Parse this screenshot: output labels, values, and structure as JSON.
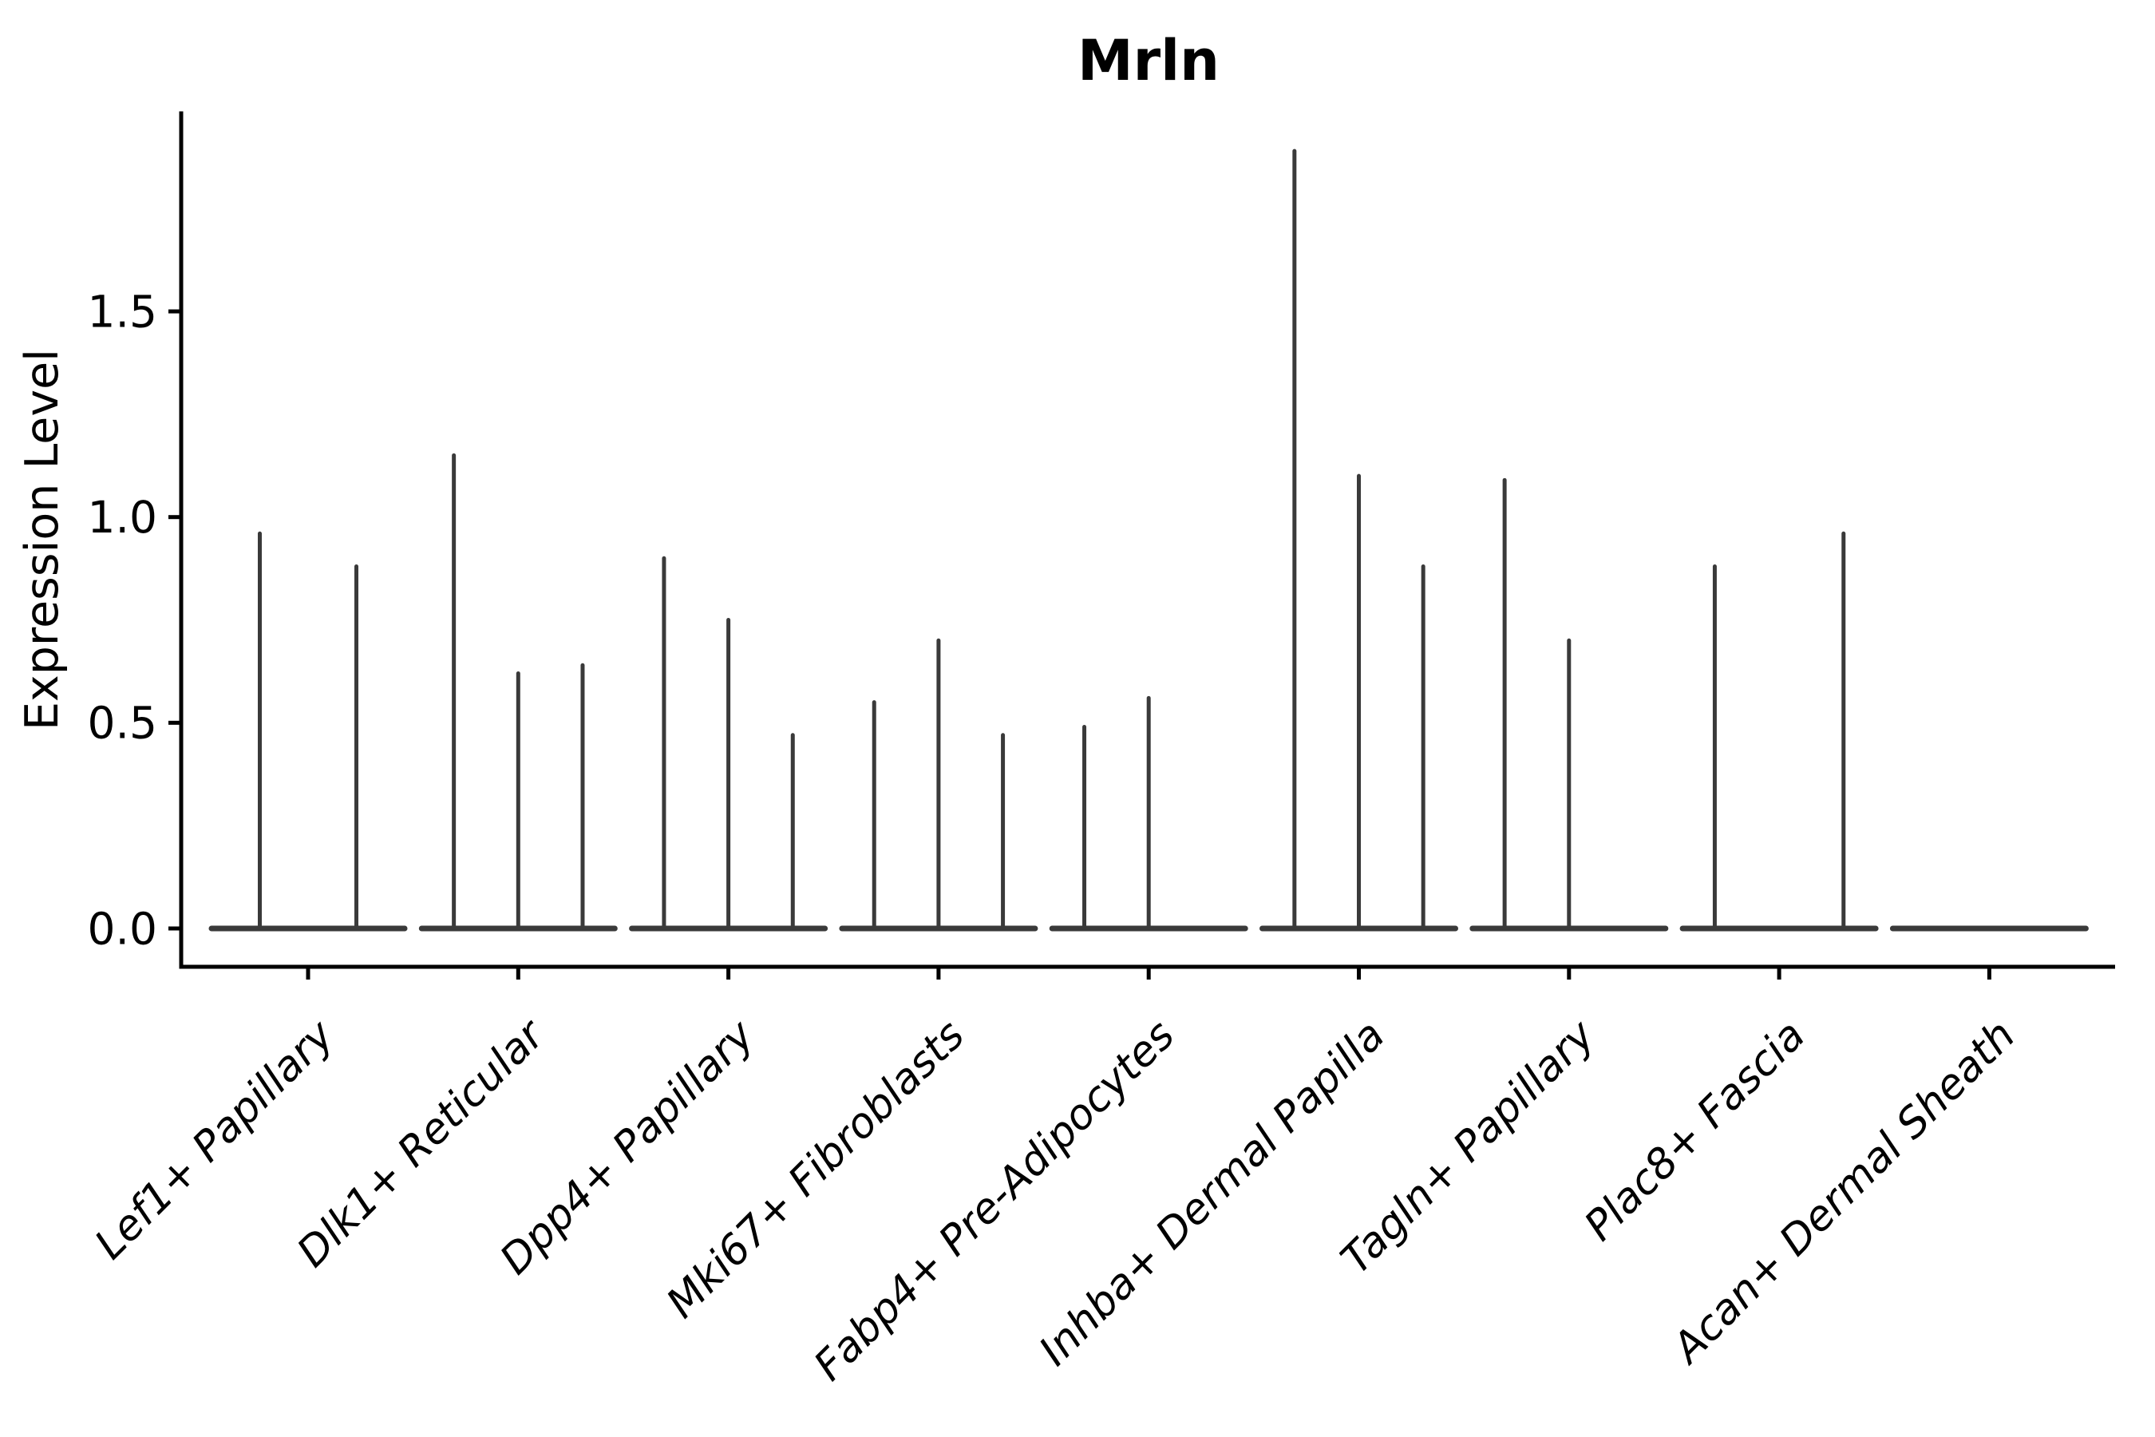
{
  "chart_data": {
    "type": "violin",
    "title": "Mrln",
    "xlabel": "",
    "ylabel": "Expression Level",
    "ytick_labels": [
      "0.0",
      "0.5",
      "1.0",
      "1.5"
    ],
    "ytick_values": [
      0.0,
      0.5,
      1.0,
      1.5
    ],
    "ylim": [
      -0.09,
      1.98
    ],
    "grid": false,
    "legend": "none",
    "categories": [
      "Lef1+ Papillary",
      "Dlk1+ Reticular",
      "Dpp4+ Papillary",
      "Mki67+ Fibroblasts",
      "Fabp4+ Pre-Adipocytes",
      "Inhba+ Dermal Papilla",
      "Tagln+ Papillary",
      "Plac8+ Fascia",
      "Acan+ Dermal Sheath"
    ],
    "violin_shape_note": "Each violin is zero-inflated: flat horizontal base at expression 0 with a thin vertical spike up to the maximum value; a maximum of 0 means a flat violin with no spike.",
    "violins_per_category": [
      [
        0.96,
        0.88
      ],
      [
        1.15,
        0.62,
        0.64
      ],
      [
        0.9,
        0.75,
        0.47
      ],
      [
        0.55,
        0.7,
        0.47
      ],
      [
        0.49,
        0.56,
        0
      ],
      [
        1.89,
        1.1,
        0.88
      ],
      [
        1.09,
        0.7,
        0
      ],
      [
        0.88,
        0,
        0.96
      ],
      [
        0,
        0,
        0
      ]
    ],
    "colors": {
      "violin": "#3a3a3a",
      "axis": "#000000",
      "background": "#ffffff"
    }
  }
}
